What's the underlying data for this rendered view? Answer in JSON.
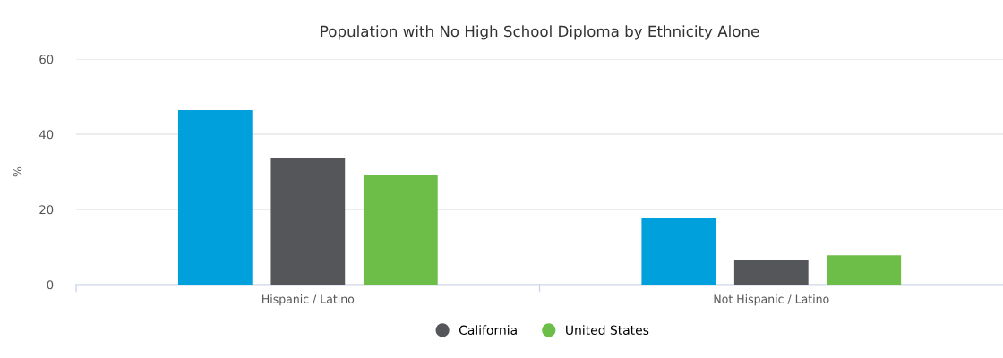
{
  "chart_data": {
    "type": "bar",
    "title": "Population with No High School Diploma by Ethnicity Alone",
    "ylabel": "%",
    "categories": [
      "Hispanic / Latino",
      "Not Hispanic / Latino"
    ],
    "series": [
      {
        "color": "#00a0dc",
        "values": [
          46.4,
          17.6
        ]
      },
      {
        "name": "California",
        "color": "#555659",
        "values": [
          33.6,
          6.6
        ]
      },
      {
        "name": "United States",
        "color": "#6cbe48",
        "values": [
          29.3,
          7.8
        ]
      }
    ],
    "ylim": [
      0,
      60
    ],
    "yticks": [
      0,
      20,
      40,
      60
    ],
    "grid": "y",
    "legend": "bottom"
  }
}
